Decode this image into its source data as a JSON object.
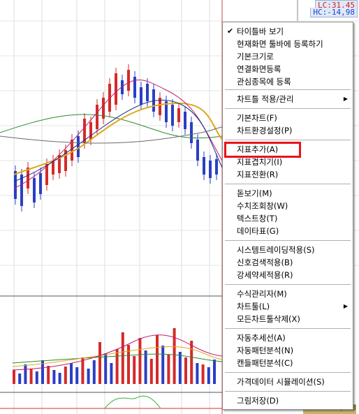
{
  "axis": {
    "lc": "LC:31,45",
    "hc": "HC:-14,98",
    "bottom_value": "332,073"
  },
  "menu": {
    "items": [
      {
        "label": "타이틀바 보기",
        "checked": true
      },
      {
        "label": "현재화면 툴바에 등록하기"
      },
      {
        "label": "기본크기로"
      },
      {
        "label": "연결화면등록"
      },
      {
        "label": "관심종목에 등록"
      },
      {
        "label": "차트틀 적용/관리",
        "submenu": true
      },
      {
        "label": "기본차트(F)"
      },
      {
        "label": "차트환경설정(P)"
      },
      {
        "label": "지표추가(A)",
        "highlighted": true
      },
      {
        "label": "지표겹치기(I)"
      },
      {
        "label": "지표전환(R)"
      },
      {
        "label": "돋보기(M)"
      },
      {
        "label": "수치조회창(W)"
      },
      {
        "label": "텍스트창(T)"
      },
      {
        "label": "데이타표(G)"
      },
      {
        "label": "시스템트레이딩적용(S)"
      },
      {
        "label": "신호검색적용(B)"
      },
      {
        "label": "강세약세적용(R)"
      },
      {
        "label": "수식관리자(M)"
      },
      {
        "label": "차트툴(L)",
        "submenu": true
      },
      {
        "label": "모든차트툴삭제(X)"
      },
      {
        "label": "자동추세선(A)"
      },
      {
        "label": "자동패턴분석(N)"
      },
      {
        "label": "캔들패턴분석(C)"
      },
      {
        "label": "가격데이터 시뮬레이션(S)"
      },
      {
        "label": "그림저장(D)"
      }
    ]
  },
  "icons": {
    "check": "check-icon",
    "submenu": "submenu-arrow-icon"
  },
  "colors": {
    "up": "#d42a2a",
    "down": "#2a3fc4",
    "ma_gold": "#e0a81c",
    "ma_green": "#2c8a2c",
    "highlight": "#e8131a"
  }
}
